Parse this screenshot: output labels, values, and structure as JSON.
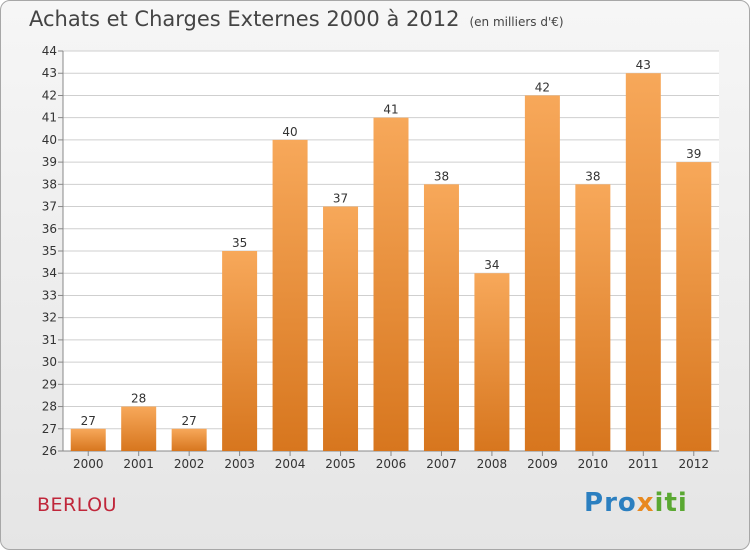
{
  "title": "Achats et Charges Externes 2000 à 2012",
  "subtitle": "(en milliers d'€)",
  "place": "BERLOU",
  "logo": {
    "text": "Proxiti",
    "letters": [
      "P",
      "r",
      "o",
      "x",
      "i",
      "t",
      "i"
    ],
    "colors": [
      "#2b7fc0",
      "#2b7fc0",
      "#2b7fc0",
      "#e8891f",
      "#5aa832",
      "#5aa832",
      "#5aa832"
    ]
  },
  "colors": {
    "bar_light": "#f7a85a",
    "bar_dark": "#d7761e",
    "grid": "#cfcfcf",
    "axis": "#888888"
  },
  "chart_data": {
    "type": "bar",
    "categories": [
      "2000",
      "2001",
      "2002",
      "2003",
      "2004",
      "2005",
      "2006",
      "2007",
      "2008",
      "2009",
      "2010",
      "2011",
      "2012"
    ],
    "values": [
      27,
      28,
      27,
      35,
      40,
      37,
      41,
      38,
      34,
      42,
      38,
      43,
      39
    ],
    "ylim": [
      26,
      44
    ],
    "yticks": [
      26,
      27,
      28,
      29,
      30,
      31,
      32,
      33,
      34,
      35,
      36,
      37,
      38,
      39,
      40,
      41,
      42,
      43,
      44
    ],
    "grid": true,
    "data_labels": true
  }
}
